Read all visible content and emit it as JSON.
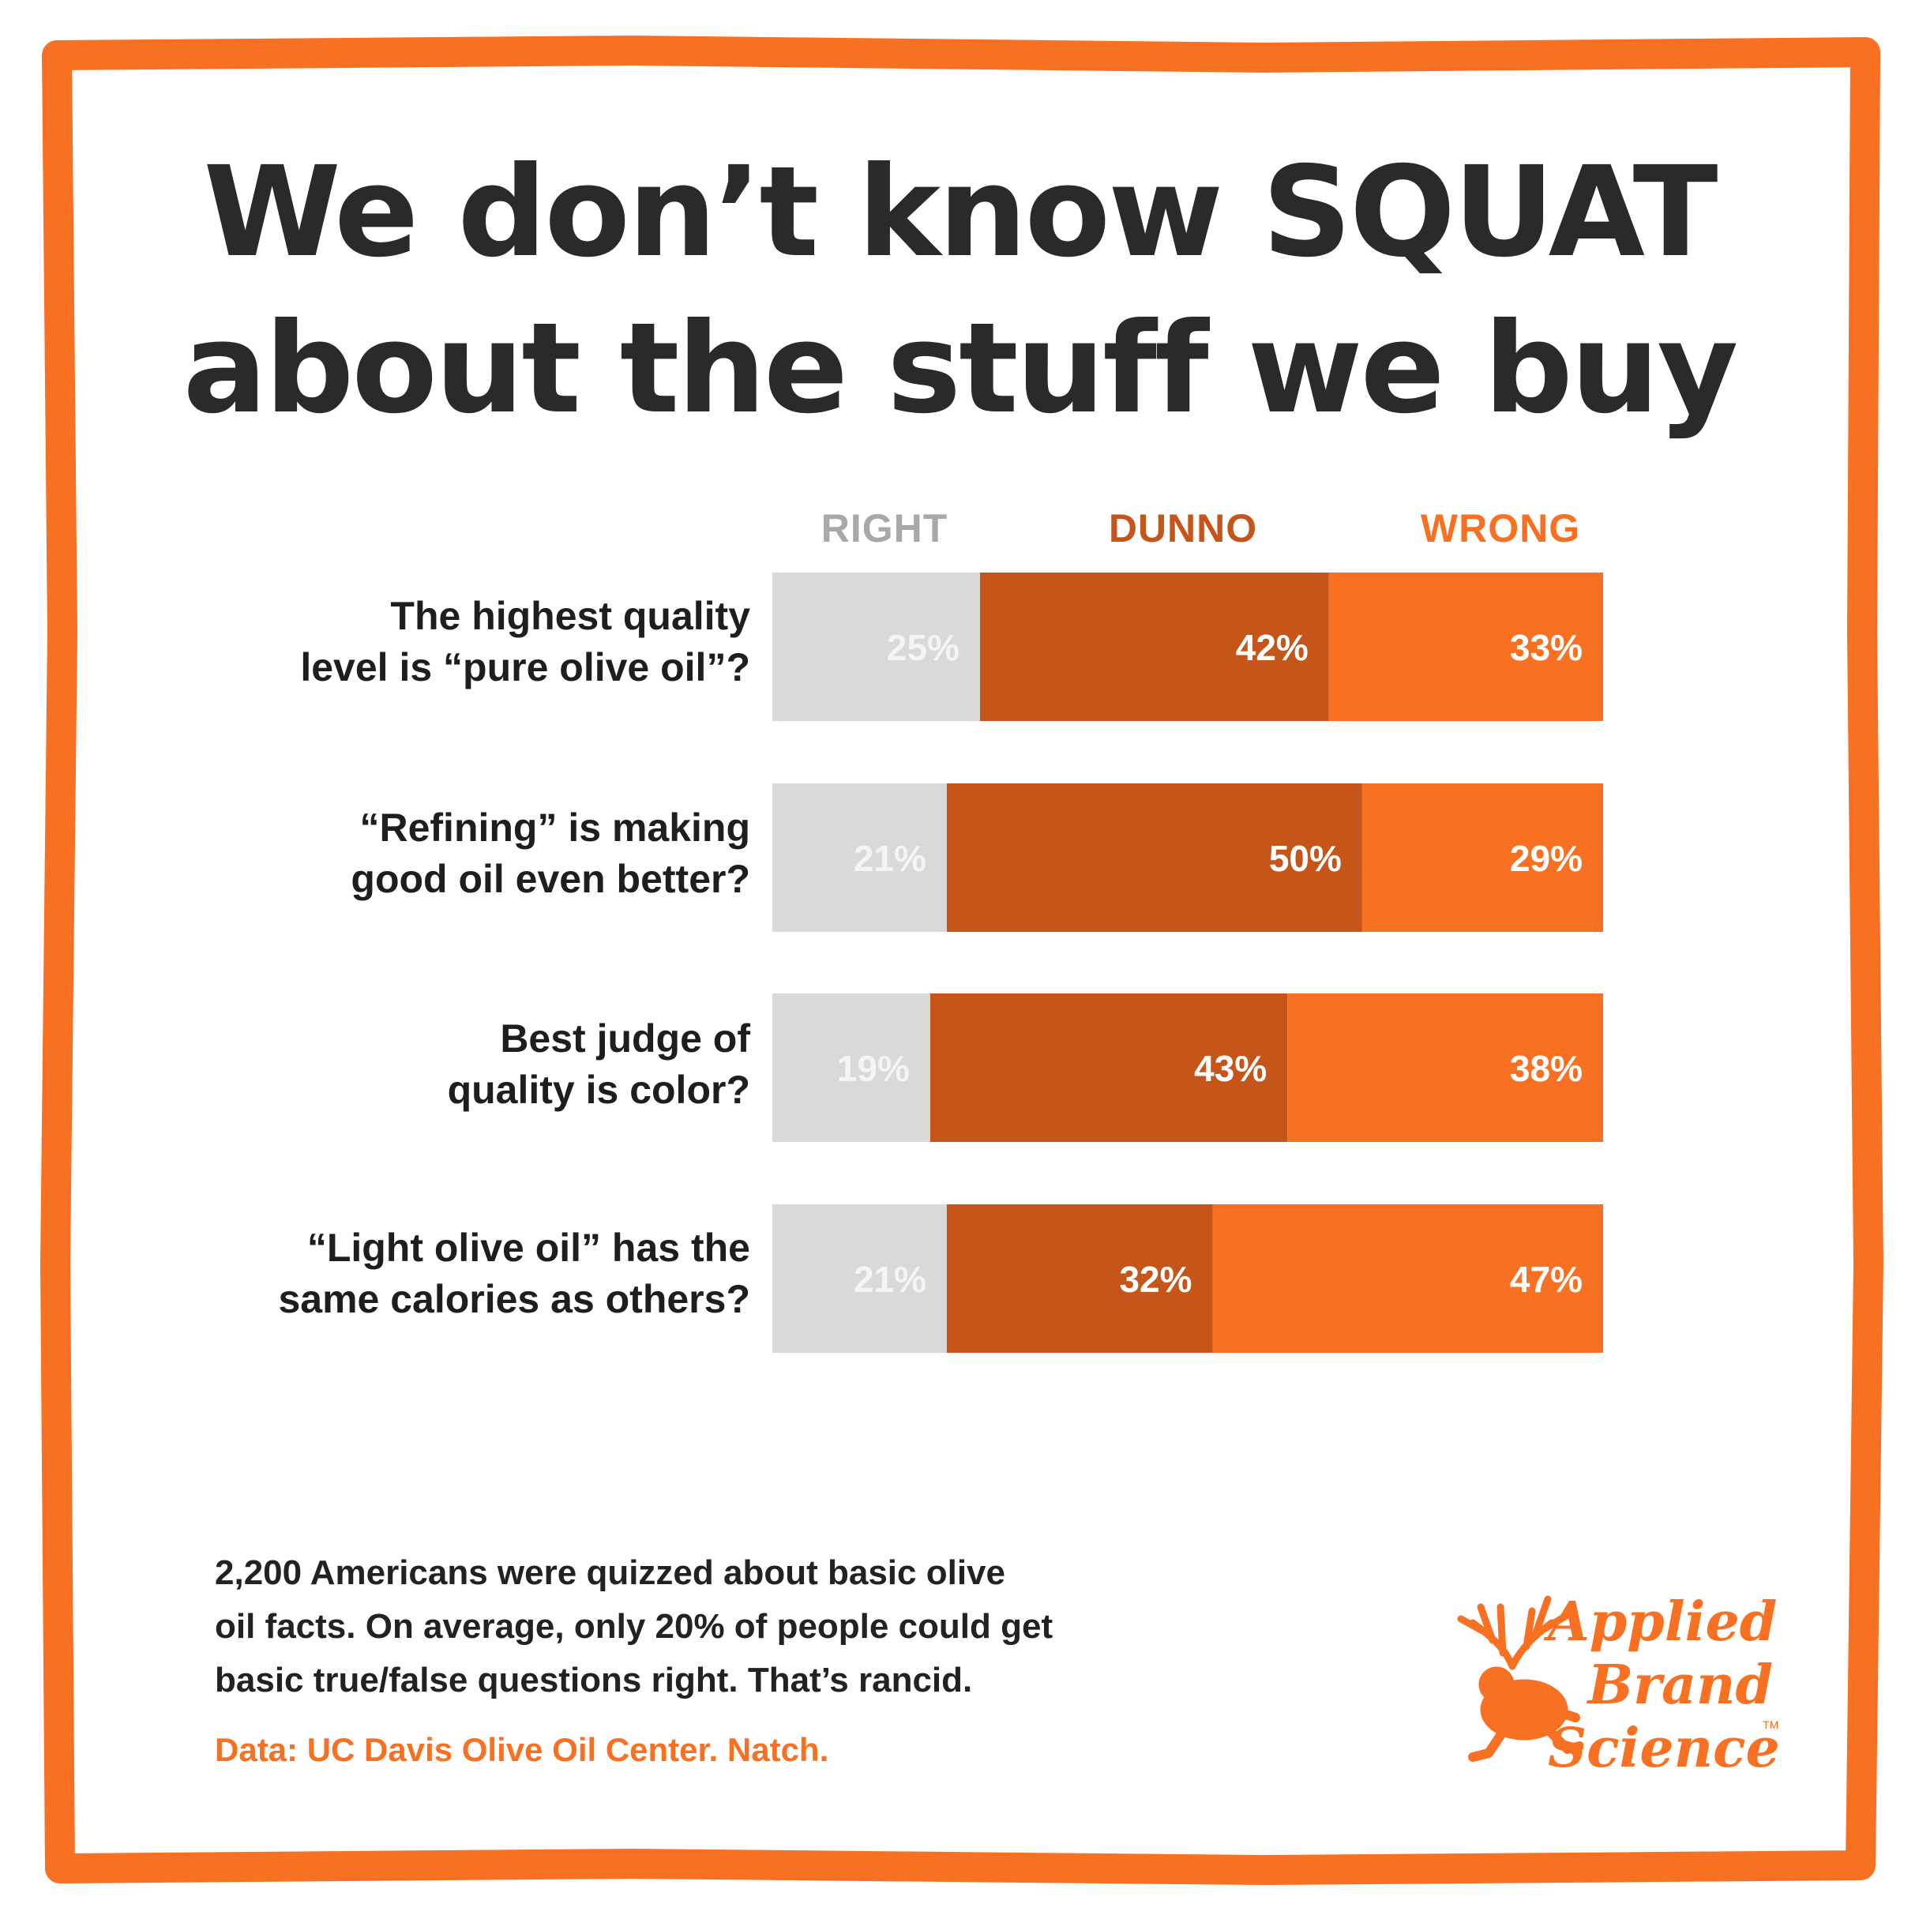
{
  "title": {
    "line1": "We don’t know SQUAT",
    "line2": "about the stuff we buy"
  },
  "chart_data": {
    "type": "bar",
    "orientation": "horizontal",
    "stacked": true,
    "series_headers": [
      "RIGHT",
      "DUNNO",
      "WRONG"
    ],
    "colors": {
      "right": "#d9d9d9",
      "dunno": "#c6551a",
      "wrong": "#f87021"
    },
    "questions": [
      {
        "line1": "The highest quality",
        "line2": "level is “pure olive oil”?"
      },
      {
        "line1": "“Refining” is making",
        "line2": "good oil even better?"
      },
      {
        "line1": "Best judge of",
        "line2": "quality is color?"
      },
      {
        "line1": "“Light olive oil” has the",
        "line2": "same calories as others?"
      }
    ],
    "series": [
      {
        "name": "RIGHT",
        "values": [
          25,
          21,
          19,
          21
        ],
        "labels": [
          "25%",
          "21%",
          "19%",
          "21%"
        ]
      },
      {
        "name": "DUNNO",
        "values": [
          42,
          50,
          43,
          32
        ],
        "labels": [
          "42%",
          "50%",
          "43%",
          "32%"
        ]
      },
      {
        "name": "WRONG",
        "values": [
          33,
          29,
          38,
          47
        ],
        "labels": [
          "33%",
          "29%",
          "38%",
          "47%"
        ]
      }
    ],
    "xlim": [
      0,
      100
    ]
  },
  "footer": {
    "line1": "2,200 Americans were quizzed about basic olive",
    "line2": "oil facts. On average, only 20% of people could get",
    "line3": "basic true/false questions right. That’s rancid.",
    "source": "Data: UC Davis Olive Oil Center. Natch."
  },
  "brand": {
    "line1": "Applied",
    "line2": "Brand",
    "line3": "Science",
    "trademark": "TM",
    "icon": "antlered-frog-icon",
    "color": "#f87021"
  },
  "frame_color": "#f87021"
}
